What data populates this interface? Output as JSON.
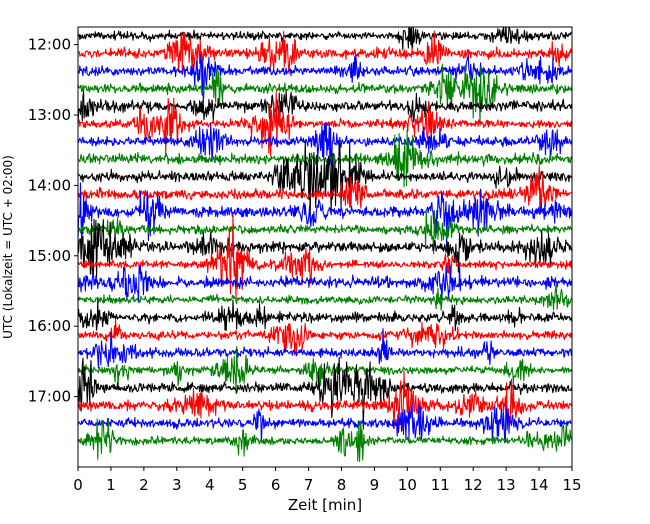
{
  "chart_data": {
    "type": "line",
    "title": "",
    "xlabel": "Zeit  [min]",
    "ylabel": "UTC (Lokalzeit = UTC + 02:00)",
    "xlim": [
      0,
      15
    ],
    "x_ticks": [
      0,
      1,
      2,
      3,
      4,
      5,
      6,
      7,
      8,
      9,
      10,
      11,
      12,
      13,
      14,
      15
    ],
    "x_tick_labels": [
      "0",
      "1",
      "2",
      "3",
      "4",
      "5",
      "6",
      "7",
      "8",
      "9",
      "10",
      "11",
      "12",
      "13",
      "14",
      "15"
    ],
    "y_start": "11:45",
    "y_end": "18:00",
    "y_ticks": [
      "12:00",
      "13:00",
      "14:00",
      "15:00",
      "16:00",
      "17:00"
    ],
    "trace_interval_min": 15,
    "trace_count": 24,
    "trace_colors": [
      "#000000",
      "#ff0000",
      "#0000ff",
      "#008000"
    ],
    "grid": false,
    "legend": "none"
  }
}
